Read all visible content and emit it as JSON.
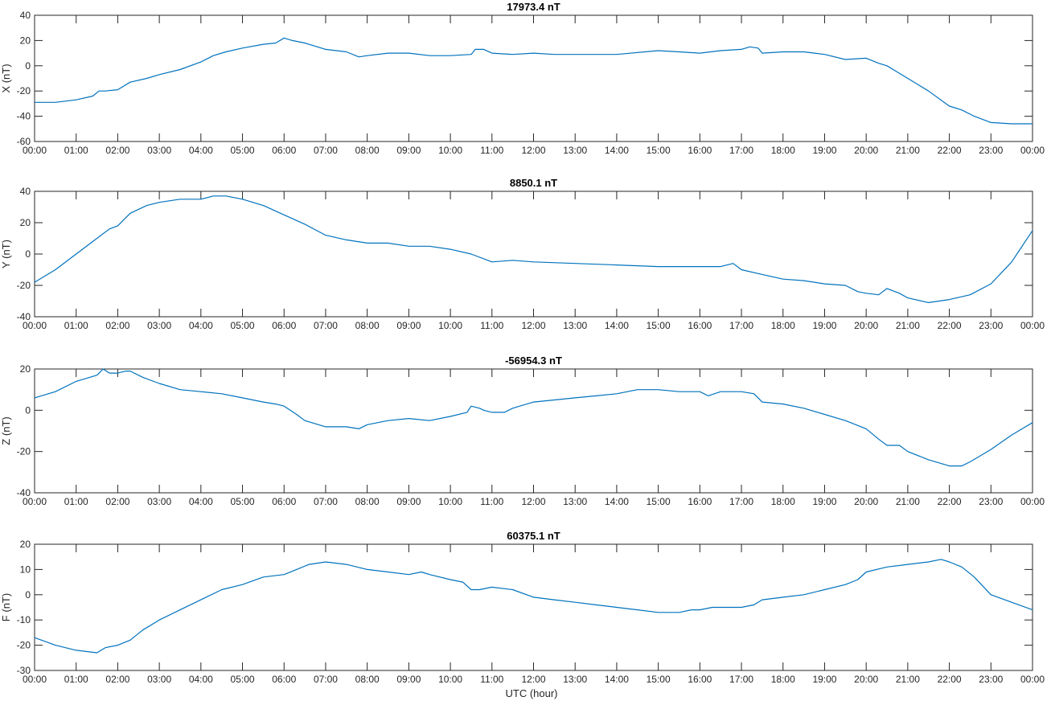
{
  "x_axis_label": "UTC (hour)",
  "x_tick_labels": [
    "00:00",
    "01:00",
    "02:00",
    "03:00",
    "04:00",
    "05:00",
    "06:00",
    "07:00",
    "08:00",
    "09:00",
    "10:00",
    "11:00",
    "12:00",
    "13:00",
    "14:00",
    "15:00",
    "16:00",
    "17:00",
    "18:00",
    "19:00",
    "20:00",
    "21:00",
    "22:00",
    "23:00",
    "00:00"
  ],
  "line_color": "#0072BD",
  "chart_data": [
    {
      "type": "line",
      "title": "17973.4 nT",
      "ylabel": "X (nT)",
      "xlim": [
        0,
        24
      ],
      "ylim": [
        -60,
        40
      ],
      "yticks": [
        -60,
        -40,
        -20,
        0,
        20,
        40
      ],
      "series": [
        {
          "x": [
            0,
            0.5,
            1,
            1.4,
            1.55,
            1.7,
            2,
            2.3,
            2.7,
            3,
            3.5,
            4,
            4.3,
            4.6,
            5,
            5.5,
            5.8,
            6.0,
            6.2,
            6.5,
            7,
            7.5,
            7.8,
            8,
            8.5,
            9,
            9.5,
            10,
            10.5,
            10.6,
            10.8,
            11,
            11.5,
            12,
            12.5,
            13,
            14,
            15,
            15.5,
            16,
            16.5,
            17,
            17.2,
            17.4,
            17.5,
            18,
            18.5,
            19,
            19.5,
            20,
            20.3,
            20.5,
            20.7,
            21,
            21.5,
            22,
            22.3,
            22.6,
            23,
            23.5,
            24
          ],
          "y": [
            -29,
            -29,
            -27,
            -24,
            -20,
            -20,
            -19,
            -13,
            -10,
            -7,
            -3,
            3,
            8,
            11,
            14,
            17,
            18,
            22,
            20,
            18,
            13,
            11,
            7,
            8,
            10,
            10,
            8,
            8,
            9,
            13,
            13,
            10,
            9,
            10,
            9,
            9,
            9,
            12,
            11,
            10,
            12,
            13,
            15,
            14,
            10,
            11,
            11,
            9,
            5,
            6,
            2,
            0,
            -4,
            -10,
            -20,
            -32,
            -35,
            -40,
            -45,
            -46,
            -46
          ]
        }
      ]
    },
    {
      "type": "line",
      "title": "8850.1 nT",
      "ylabel": "Y (nT)",
      "xlim": [
        0,
        24
      ],
      "ylim": [
        -40,
        40
      ],
      "yticks": [
        -40,
        -20,
        0,
        20,
        40
      ],
      "series": [
        {
          "x": [
            0,
            0.5,
            1,
            1.5,
            1.8,
            2,
            2.3,
            2.7,
            3,
            3.5,
            4,
            4.3,
            4.6,
            5,
            5.5,
            6,
            6.5,
            7,
            7.5,
            8,
            8.5,
            9,
            9.5,
            10,
            10.5,
            11,
            11.5,
            12,
            13,
            14,
            15,
            16,
            16.5,
            16.8,
            17,
            17.5,
            18,
            18.5,
            19,
            19.5,
            19.8,
            20,
            20.3,
            20.5,
            20.8,
            21,
            21.5,
            22,
            22.5,
            23,
            23.5,
            24
          ],
          "y": [
            -18,
            -10,
            0,
            10,
            16,
            18,
            26,
            31,
            33,
            35,
            35,
            37,
            37,
            35,
            31,
            25,
            19,
            12,
            9,
            7,
            7,
            5,
            5,
            3,
            0,
            -5,
            -4,
            -5,
            -6,
            -7,
            -8,
            -8,
            -8,
            -6,
            -10,
            -13,
            -16,
            -17,
            -19,
            -20,
            -24,
            -25,
            -26,
            -22,
            -25,
            -28,
            -31,
            -29,
            -26,
            -19,
            -5,
            15
          ]
        }
      ]
    },
    {
      "type": "line",
      "title": "-56954.3 nT",
      "ylabel": "Z (nT)",
      "xlim": [
        0,
        24
      ],
      "ylim": [
        -40,
        20
      ],
      "yticks": [
        -40,
        -20,
        0,
        20
      ],
      "series": [
        {
          "x": [
            0,
            0.5,
            1,
            1.5,
            1.65,
            1.8,
            2,
            2.2,
            2.3,
            2.6,
            3,
            3.5,
            4,
            4.5,
            5,
            5.5,
            5.8,
            6,
            6.3,
            6.5,
            7,
            7.5,
            7.8,
            8,
            8.5,
            9,
            9.5,
            10,
            10.4,
            10.5,
            10.7,
            10.8,
            11,
            11.3,
            11.5,
            12,
            12.5,
            13,
            13.5,
            14,
            14.5,
            14.8,
            15,
            15.5,
            16,
            16.2,
            16.5,
            17,
            17.3,
            17.5,
            18,
            18.5,
            19,
            19.5,
            20,
            20.3,
            20.5,
            20.8,
            21,
            21.5,
            22,
            22.3,
            22.5,
            23,
            23.5,
            24
          ],
          "y": [
            6,
            9,
            14,
            17,
            20,
            18,
            18,
            19,
            19,
            16,
            13,
            10,
            9,
            8,
            6,
            4,
            3,
            2,
            -2,
            -5,
            -8,
            -8,
            -9,
            -7,
            -5,
            -4,
            -5,
            -3,
            -1,
            2,
            1,
            0,
            -1,
            -1,
            1,
            4,
            5,
            6,
            7,
            8,
            10,
            10,
            10,
            9,
            9,
            7,
            9,
            9,
            8,
            4,
            3,
            1,
            -2,
            -5,
            -9,
            -14,
            -17,
            -17,
            -20,
            -24,
            -27,
            -27,
            -25,
            -19,
            -12,
            -6
          ]
        }
      ]
    },
    {
      "type": "line",
      "title": "60375.1 nT",
      "ylabel": "F (nT)",
      "xlim": [
        0,
        24
      ],
      "ylim": [
        -30,
        20
      ],
      "yticks": [
        -30,
        -20,
        -10,
        0,
        10,
        20
      ],
      "series": [
        {
          "x": [
            0,
            0.5,
            1,
            1.5,
            1.7,
            2,
            2.3,
            2.6,
            3,
            3.5,
            4,
            4.5,
            5,
            5.5,
            6,
            6.3,
            6.6,
            7,
            7.5,
            8,
            8.5,
            9,
            9.3,
            9.5,
            10,
            10.3,
            10.5,
            10.7,
            11,
            11.5,
            12,
            12.5,
            13,
            13.5,
            14,
            14.5,
            15,
            15.5,
            15.8,
            16,
            16.3,
            16.5,
            17,
            17.3,
            17.5,
            18,
            18.5,
            19,
            19.5,
            19.8,
            20,
            20.5,
            21,
            21.5,
            21.8,
            22,
            22.3,
            22.6,
            23,
            23.5,
            24
          ],
          "y": [
            -17,
            -20,
            -22,
            -23,
            -21,
            -20,
            -18,
            -14,
            -10,
            -6,
            -2,
            2,
            4,
            7,
            8,
            10,
            12,
            13,
            12,
            10,
            9,
            8,
            9,
            8,
            6,
            5,
            2,
            2,
            3,
            2,
            -1,
            -2,
            -3,
            -4,
            -5,
            -6,
            -7,
            -7,
            -6,
            -6,
            -5,
            -5,
            -5,
            -4,
            -2,
            -1,
            0,
            2,
            4,
            6,
            9,
            11,
            12,
            13,
            14,
            13,
            11,
            7,
            0,
            -3,
            -6
          ]
        }
      ]
    }
  ]
}
